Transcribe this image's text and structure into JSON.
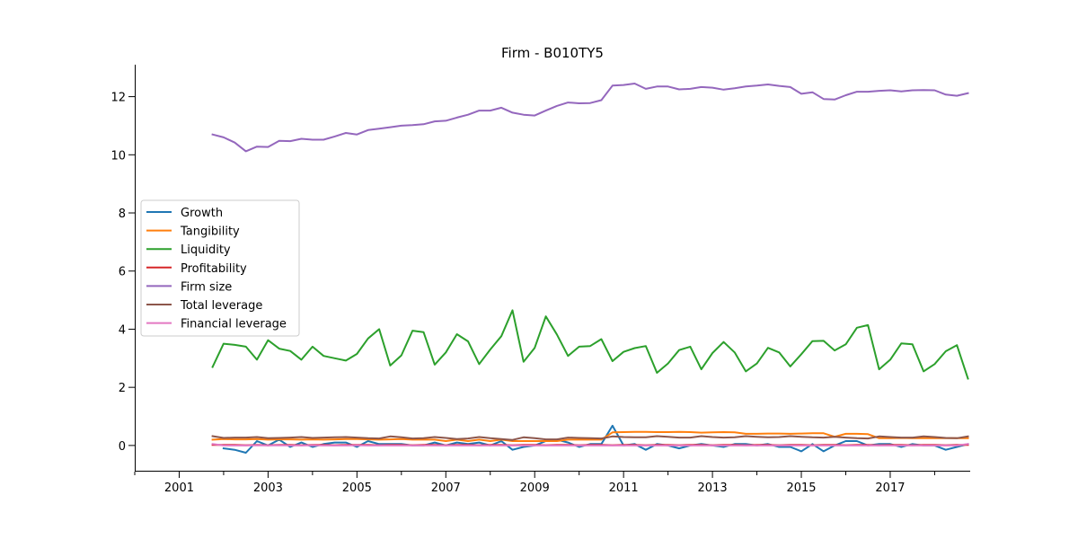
{
  "chart_data": {
    "type": "line",
    "title": "Firm - B010TY5",
    "xlabel": "",
    "ylabel": "",
    "xlim": [
      2000.0,
      2018.8
    ],
    "ylim": [
      -0.9,
      13.1
    ],
    "x_ticks": [
      2001,
      2003,
      2005,
      2007,
      2009,
      2011,
      2013,
      2015,
      2017
    ],
    "y_ticks": [
      0,
      2,
      4,
      6,
      8,
      10,
      12
    ],
    "grid": false,
    "legend_position": "center-left",
    "x": [
      2001.75,
      2002.0,
      2002.25,
      2002.5,
      2002.75,
      2003.0,
      2003.25,
      2003.5,
      2003.75,
      2004.0,
      2004.25,
      2004.5,
      2004.75,
      2005.0,
      2005.25,
      2005.5,
      2005.75,
      2006.0,
      2006.25,
      2006.5,
      2006.75,
      2007.0,
      2007.25,
      2007.5,
      2007.75,
      2008.0,
      2008.25,
      2008.5,
      2008.75,
      2009.0,
      2009.25,
      2009.5,
      2009.75,
      2010.0,
      2010.25,
      2010.5,
      2010.75,
      2011.0,
      2011.25,
      2011.5,
      2011.75,
      2012.0,
      2012.25,
      2012.5,
      2012.75,
      2013.0,
      2013.25,
      2013.5,
      2013.75,
      2014.0,
      2014.25,
      2014.5,
      2014.75,
      2015.0,
      2015.25,
      2015.5,
      2015.75,
      2016.0,
      2016.25,
      2016.5,
      2016.75,
      2017.0,
      2017.25,
      2017.5,
      2017.75,
      2018.0,
      2018.25,
      2018.5,
      2018.75
    ],
    "series": [
      {
        "name": "Growth",
        "color": "#1f77b4",
        "values": [
          null,
          -0.1,
          -0.15,
          -0.25,
          0.15,
          0.0,
          0.2,
          -0.05,
          0.1,
          -0.05,
          0.05,
          0.1,
          0.1,
          -0.05,
          0.15,
          0.05,
          0.05,
          0.05,
          0.0,
          0.0,
          0.1,
          0.0,
          0.1,
          0.05,
          0.1,
          0.0,
          0.15,
          -0.15,
          -0.05,
          0.0,
          0.15,
          0.2,
          0.1,
          -0.05,
          0.05,
          0.05,
          0.68,
          0.0,
          0.05,
          -0.15,
          0.05,
          0.0,
          -0.1,
          0.0,
          0.05,
          0.0,
          -0.05,
          0.05,
          0.05,
          0.0,
          0.05,
          -0.05,
          -0.05,
          -0.2,
          0.05,
          -0.2,
          0.0,
          0.15,
          0.15,
          0.0,
          0.05,
          0.05,
          -0.05,
          0.05,
          0.0,
          0.0,
          -0.15,
          -0.05,
          0.05
        ]
      },
      {
        "name": "Tangibility",
        "color": "#ff7f0e",
        "values": [
          0.2,
          0.22,
          0.21,
          0.21,
          0.22,
          0.2,
          0.21,
          0.21,
          0.2,
          0.21,
          0.2,
          0.21,
          0.22,
          0.22,
          0.21,
          0.2,
          0.21,
          0.22,
          0.2,
          0.2,
          0.2,
          0.15,
          0.2,
          0.15,
          0.2,
          0.15,
          0.2,
          0.15,
          0.15,
          0.15,
          0.15,
          0.15,
          0.2,
          0.2,
          0.2,
          0.2,
          0.45,
          0.46,
          0.47,
          0.47,
          0.46,
          0.46,
          0.47,
          0.46,
          0.44,
          0.45,
          0.46,
          0.45,
          0.4,
          0.4,
          0.41,
          0.41,
          0.4,
          0.41,
          0.42,
          0.42,
          0.3,
          0.4,
          0.4,
          0.39,
          0.25,
          0.25,
          0.26,
          0.25,
          0.25,
          0.25,
          0.25,
          0.25,
          0.25
        ]
      },
      {
        "name": "Liquidity",
        "color": "#2ca02c",
        "values": [
          2.7,
          3.5,
          3.46,
          3.4,
          2.95,
          3.62,
          3.33,
          3.25,
          2.95,
          3.4,
          3.08,
          3.0,
          2.92,
          3.15,
          3.68,
          4.0,
          2.75,
          3.1,
          3.95,
          3.9,
          2.78,
          3.2,
          3.83,
          3.58,
          2.8,
          3.3,
          3.76,
          4.65,
          2.88,
          3.36,
          4.44,
          3.82,
          3.08,
          3.4,
          3.42,
          3.66,
          2.9,
          3.22,
          3.35,
          3.42,
          2.5,
          2.82,
          3.28,
          3.4,
          2.62,
          3.18,
          3.56,
          3.2,
          2.55,
          2.82,
          3.36,
          3.2,
          2.72,
          3.14,
          3.59,
          3.6,
          3.27,
          3.48,
          4.05,
          4.14,
          2.62,
          2.95,
          3.51,
          3.48,
          2.55,
          2.8,
          3.24,
          3.45,
          2.3
        ]
      },
      {
        "name": "Profitability",
        "color": "#d62728",
        "values": [
          0.02,
          0.02,
          0.02,
          0.01,
          0.02,
          0.01,
          0.02,
          0.02,
          0.01,
          0.02,
          0.02,
          0.01,
          0.02,
          0.02,
          0.02,
          0.01,
          0.02,
          0.02,
          0.01,
          0.02,
          0.02,
          0.01,
          0.02,
          0.02,
          0.01,
          0.02,
          0.02,
          0.01,
          0.02,
          0.02,
          0.01,
          0.02,
          0.02,
          0.01,
          0.02,
          0.02,
          0.01,
          0.02,
          0.02,
          0.01,
          0.02,
          0.02,
          0.01,
          0.02,
          0.02,
          0.01,
          0.02,
          0.02,
          0.01,
          0.02,
          0.02,
          0.01,
          0.02,
          0.02,
          0.01,
          0.02,
          0.02,
          0.01,
          0.02,
          0.02,
          0.01,
          0.02,
          0.02,
          0.01,
          0.02,
          0.02,
          0.01,
          0.02,
          0.02
        ]
      },
      {
        "name": "Firm size",
        "color": "#9467bd",
        "values": [
          10.7,
          10.6,
          10.42,
          10.12,
          10.28,
          10.27,
          10.48,
          10.47,
          10.55,
          10.52,
          10.52,
          10.63,
          10.75,
          10.7,
          10.85,
          10.9,
          10.95,
          11.0,
          11.02,
          11.05,
          11.15,
          11.17,
          11.28,
          11.38,
          11.52,
          11.52,
          11.62,
          11.45,
          11.38,
          11.35,
          11.52,
          11.68,
          11.8,
          11.77,
          11.78,
          11.88,
          12.38,
          12.4,
          12.45,
          12.27,
          12.35,
          12.35,
          12.25,
          12.27,
          12.33,
          12.31,
          12.24,
          12.29,
          12.35,
          12.38,
          12.42,
          12.37,
          12.33,
          12.1,
          12.15,
          11.92,
          11.9,
          12.05,
          12.17,
          12.17,
          12.2,
          12.22,
          12.18,
          12.22,
          12.23,
          12.22,
          12.07,
          12.03,
          12.12
        ]
      },
      {
        "name": "Total leverage",
        "color": "#8c564b",
        "values": [
          0.32,
          0.26,
          0.27,
          0.27,
          0.29,
          0.25,
          0.26,
          0.27,
          0.29,
          0.26,
          0.27,
          0.28,
          0.29,
          0.27,
          0.25,
          0.24,
          0.31,
          0.28,
          0.24,
          0.25,
          0.29,
          0.26,
          0.22,
          0.24,
          0.29,
          0.25,
          0.22,
          0.19,
          0.28,
          0.25,
          0.21,
          0.21,
          0.27,
          0.26,
          0.25,
          0.24,
          0.31,
          0.29,
          0.28,
          0.28,
          0.32,
          0.3,
          0.27,
          0.27,
          0.32,
          0.29,
          0.27,
          0.28,
          0.32,
          0.3,
          0.28,
          0.29,
          0.32,
          0.3,
          0.28,
          0.27,
          0.3,
          0.27,
          0.25,
          0.24,
          0.31,
          0.29,
          0.27,
          0.27,
          0.31,
          0.29,
          0.26,
          0.25,
          0.31
        ]
      },
      {
        "name": "Financial leverage",
        "color": "#e377c2",
        "values": [
          0.05,
          0.0,
          0.0,
          0.0,
          0.01,
          0.0,
          0.01,
          0.0,
          0.0,
          0.01,
          0.0,
          0.0,
          0.0,
          0.01,
          0.0,
          0.0,
          0.0,
          0.0,
          0.0,
          0.0,
          0.0,
          0.0,
          0.0,
          0.0,
          0.0,
          0.0,
          0.0,
          0.0,
          0.0,
          0.0,
          0.0,
          0.0,
          0.0,
          0.0,
          0.0,
          0.0,
          0.0,
          0.0,
          0.0,
          0.0,
          0.0,
          0.0,
          0.0,
          0.0,
          0.0,
          0.0,
          0.0,
          0.0,
          0.0,
          0.0,
          0.0,
          0.0,
          0.0,
          0.0,
          0.0,
          0.0,
          0.0,
          0.0,
          0.0,
          0.0,
          0.0,
          0.0,
          0.0,
          0.0,
          0.0,
          0.0,
          0.0,
          0.0,
          0.05
        ]
      }
    ]
  }
}
